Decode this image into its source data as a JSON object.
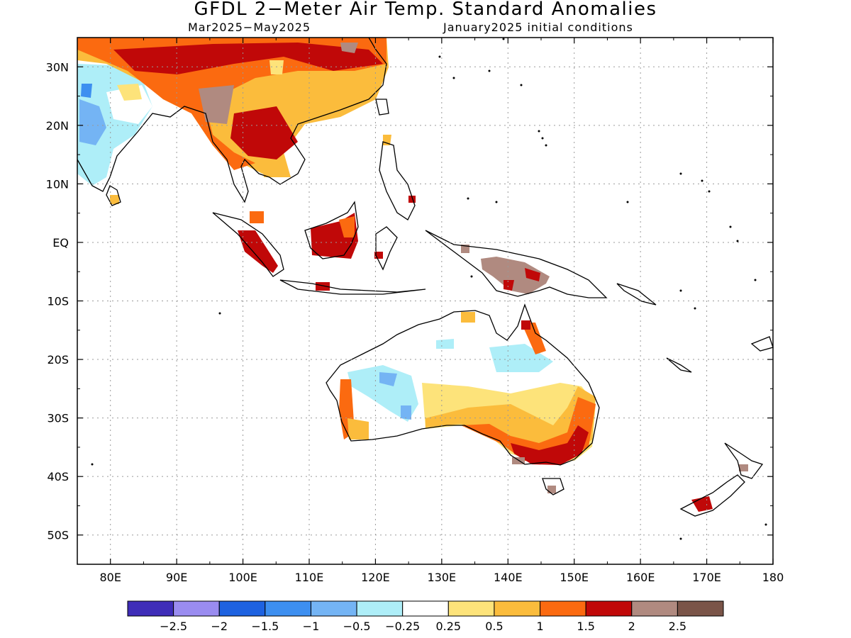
{
  "title": "GFDL 2−Meter Air Temp. Standard Anomalies",
  "period": "Mar2025−May2025",
  "initial_conditions": "January2025 initial conditions",
  "map": {
    "lon_range": [
      75,
      180
    ],
    "lat_range": [
      -55,
      35
    ],
    "lat_labels": [
      "30N",
      "20N",
      "10N",
      "EQ",
      "10S",
      "20S",
      "30S",
      "40S",
      "50S"
    ],
    "lon_labels": [
      "80E",
      "90E",
      "100E",
      "110E",
      "120E",
      "130E",
      "140E",
      "150E",
      "160E",
      "170E",
      "180"
    ],
    "gridlines": "dotted"
  },
  "legend": {
    "labels": [
      "−2.5",
      "−2",
      "−1.5",
      "−1",
      "−0.5",
      "−0.25",
      "0.25",
      "0.5",
      "1",
      "1.5",
      "2",
      "2.5"
    ],
    "colors": [
      "#3f2db8",
      "#9a8cf0",
      "#1e62e0",
      "#3d8ff0",
      "#74b4f4",
      "#aeeef8",
      "#ffffff",
      "#fde37a",
      "#fbbc3c",
      "#fb6a10",
      "#c00808",
      "#b08a80",
      "#7a5448"
    ]
  }
}
